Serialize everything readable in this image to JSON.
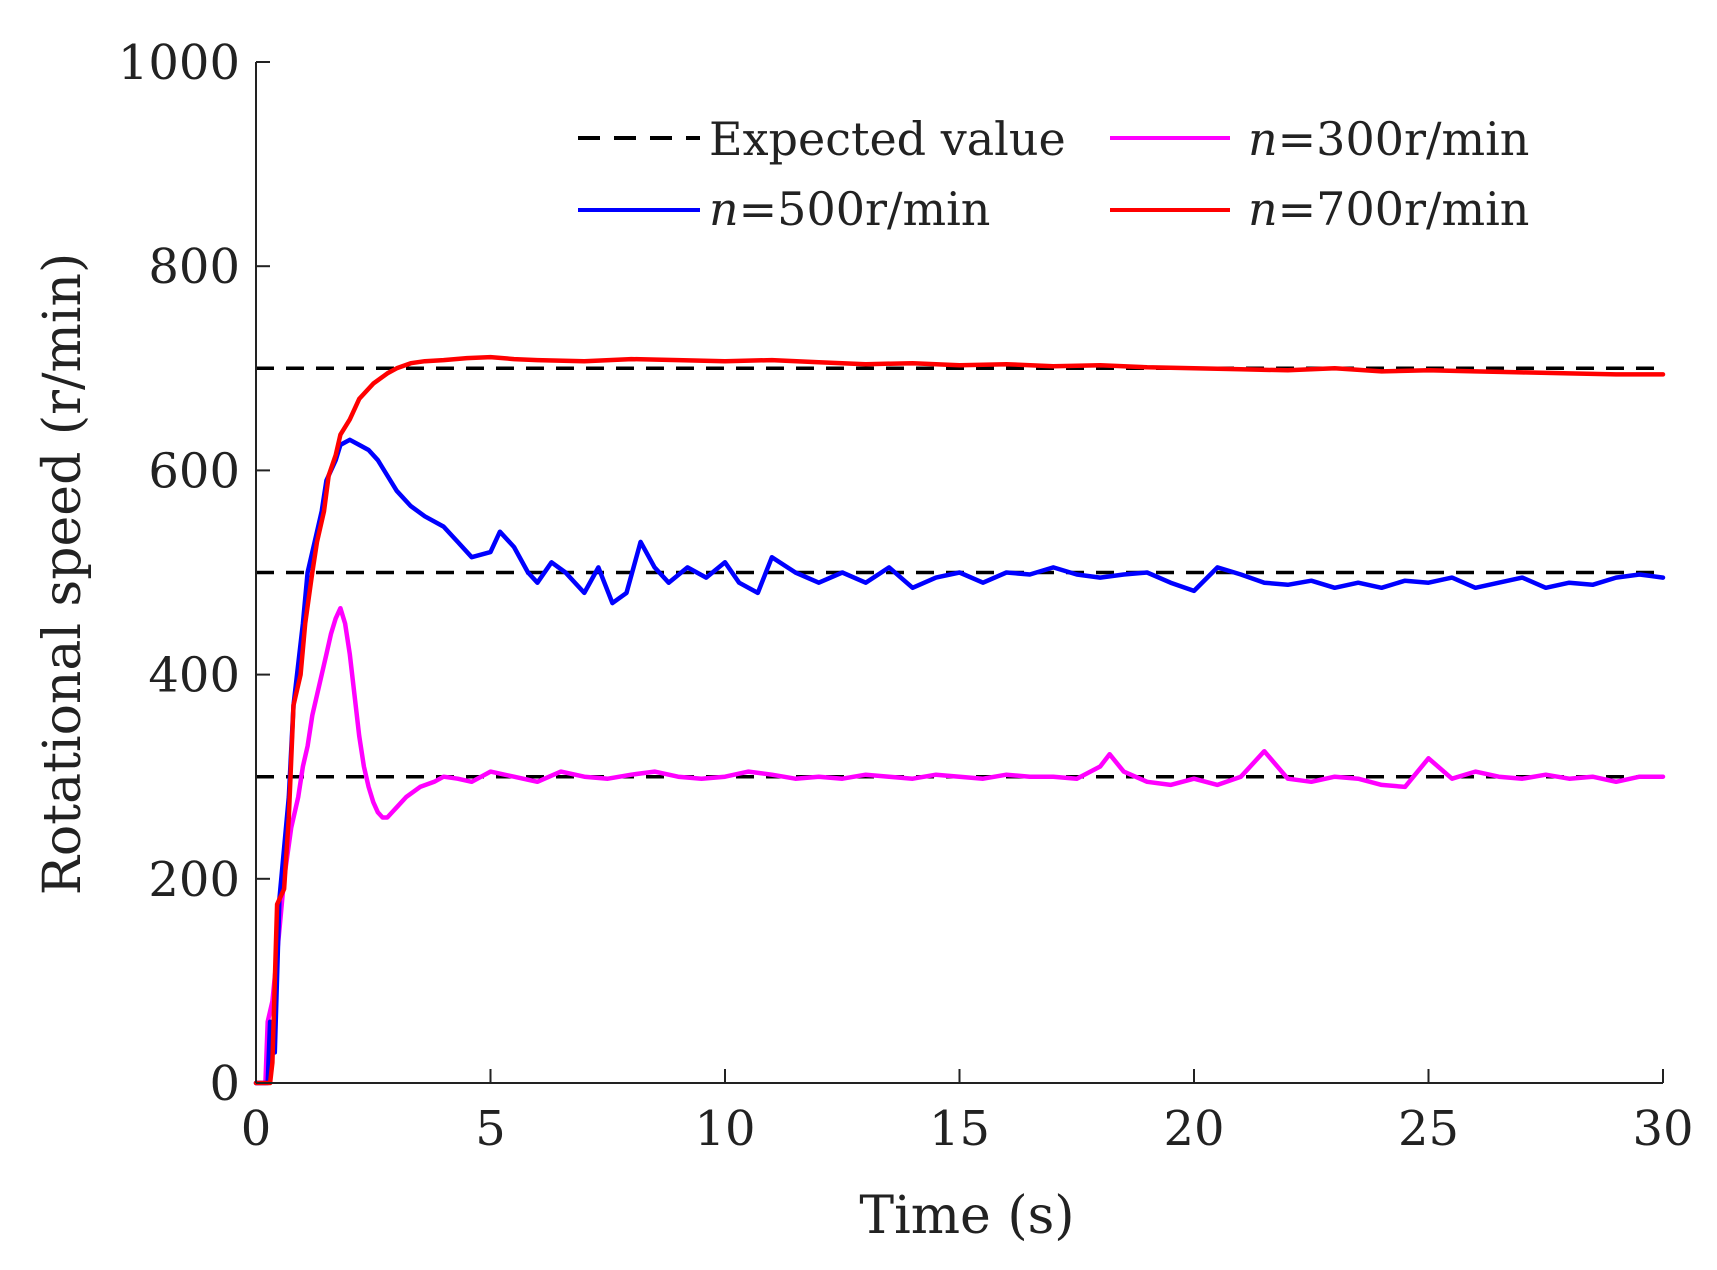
{
  "chart_data": {
    "type": "line",
    "xlabel": "Time (s)",
    "ylabel": "Rotational speed (r/min)",
    "xlim": [
      0,
      30
    ],
    "ylim": [
      0,
      1000
    ],
    "xticks": [
      0,
      5,
      10,
      15,
      20,
      25,
      30
    ],
    "yticks": [
      0,
      200,
      400,
      600,
      800,
      1000
    ],
    "grid": false,
    "legend_position": "top-right",
    "reference_lines": {
      "name": "Expected value",
      "color": "#000000",
      "style": "dashed",
      "x_start": 0,
      "x_end": 30,
      "values": [
        300,
        500,
        700
      ]
    },
    "series": [
      {
        "name": "n=300r/min",
        "name_italic": "n",
        "name_rest": "=300r/min",
        "color": "#ff00ff",
        "x": [
          0,
          0.2,
          0.25,
          0.35,
          0.5,
          0.6,
          0.75,
          0.9,
          1.0,
          1.1,
          1.2,
          1.3,
          1.4,
          1.5,
          1.6,
          1.7,
          1.8,
          1.9,
          2.0,
          2.1,
          2.2,
          2.3,
          2.4,
          2.5,
          2.6,
          2.7,
          2.8,
          2.9,
          3.0,
          3.2,
          3.5,
          3.8,
          4.0,
          4.3,
          4.6,
          5.0,
          5.5,
          6.0,
          6.5,
          7.0,
          7.5,
          8.0,
          8.5,
          9.0,
          9.5,
          10.0,
          10.5,
          11.0,
          11.5,
          12.0,
          12.5,
          13.0,
          13.5,
          14.0,
          14.5,
          15.0,
          15.5,
          16.0,
          16.5,
          17.0,
          17.5,
          18.0,
          18.2,
          18.5,
          19.0,
          19.5,
          20.0,
          20.5,
          21.0,
          21.5,
          22.0,
          22.5,
          23.0,
          23.5,
          24.0,
          24.5,
          25.0,
          25.5,
          26.0,
          26.5,
          27.0,
          27.5,
          28.0,
          28.5,
          29.0,
          29.5,
          30.0
        ],
        "y": [
          0,
          0,
          60,
          80,
          150,
          200,
          250,
          280,
          310,
          330,
          360,
          380,
          400,
          420,
          440,
          455,
          465,
          450,
          420,
          380,
          340,
          310,
          290,
          275,
          265,
          260,
          260,
          265,
          270,
          280,
          290,
          295,
          300,
          298,
          295,
          305,
          300,
          295,
          305,
          300,
          298,
          302,
          305,
          300,
          298,
          300,
          305,
          302,
          298,
          300,
          298,
          302,
          300,
          298,
          302,
          300,
          298,
          302,
          300,
          300,
          298,
          310,
          322,
          305,
          295,
          292,
          298,
          292,
          300,
          325,
          298,
          295,
          300,
          298,
          292,
          290,
          318,
          298,
          305,
          300,
          298,
          302,
          298,
          300,
          295,
          300,
          300
        ]
      },
      {
        "name": "n=500r/min",
        "name_italic": "n",
        "name_rest": "=500r/min",
        "color": "#0000ff",
        "x": [
          0,
          0.25,
          0.3,
          0.4,
          0.5,
          0.7,
          0.8,
          1.0,
          1.1,
          1.2,
          1.3,
          1.4,
          1.5,
          1.7,
          1.8,
          2.0,
          2.2,
          2.4,
          2.6,
          2.8,
          3.0,
          3.3,
          3.6,
          4.0,
          4.3,
          4.6,
          5.0,
          5.2,
          5.5,
          5.8,
          6.0,
          6.3,
          6.6,
          7.0,
          7.3,
          7.6,
          7.9,
          8.2,
          8.5,
          8.8,
          9.2,
          9.6,
          10.0,
          10.3,
          10.7,
          11.0,
          11.5,
          12.0,
          12.5,
          13.0,
          13.5,
          14.0,
          14.5,
          15.0,
          15.5,
          16.0,
          16.5,
          17.0,
          17.5,
          18.0,
          18.5,
          19.0,
          19.5,
          20.0,
          20.5,
          21.0,
          21.5,
          22.0,
          22.5,
          23.0,
          23.5,
          24.0,
          24.5,
          25.0,
          25.5,
          26.0,
          26.5,
          27.0,
          27.5,
          28.0,
          28.5,
          29.0,
          29.5,
          30.0
        ],
        "y": [
          0,
          0,
          60,
          30,
          180,
          280,
          370,
          450,
          500,
          520,
          540,
          560,
          590,
          610,
          625,
          630,
          625,
          620,
          610,
          595,
          580,
          565,
          555,
          545,
          530,
          515,
          520,
          540,
          525,
          500,
          490,
          510,
          500,
          480,
          505,
          470,
          480,
          530,
          505,
          490,
          505,
          495,
          510,
          490,
          480,
          515,
          500,
          490,
          500,
          490,
          505,
          485,
          495,
          500,
          490,
          500,
          498,
          505,
          498,
          495,
          498,
          500,
          490,
          482,
          505,
          498,
          490,
          488,
          492,
          485,
          490,
          485,
          492,
          490,
          495,
          485,
          490,
          495,
          485,
          490,
          488,
          495,
          498,
          495
        ]
      },
      {
        "name": "n=700r/min",
        "name_italic": "n",
        "name_rest": "=700r/min",
        "color": "#ff0000",
        "x": [
          0,
          0.3,
          0.35,
          0.45,
          0.6,
          0.7,
          0.8,
          0.95,
          1.05,
          1.2,
          1.3,
          1.45,
          1.55,
          1.7,
          1.8,
          2.0,
          2.2,
          2.5,
          2.8,
          3.0,
          3.3,
          3.6,
          4.0,
          4.5,
          5.0,
          5.5,
          6.0,
          7.0,
          8.0,
          9.0,
          10.0,
          11.0,
          12.0,
          13.0,
          14.0,
          15.0,
          16.0,
          17.0,
          18.0,
          19.0,
          20.0,
          21.0,
          22.0,
          23.0,
          24.0,
          25.0,
          26.0,
          27.0,
          28.0,
          29.0,
          30.0
        ],
        "y": [
          0,
          0,
          20,
          175,
          190,
          260,
          370,
          400,
          450,
          500,
          530,
          560,
          595,
          615,
          635,
          650,
          670,
          685,
          695,
          700,
          705,
          707,
          708,
          710,
          711,
          709,
          708,
          707,
          709,
          708,
          707,
          708,
          706,
          704,
          705,
          703,
          704,
          702,
          703,
          701,
          700,
          699,
          698,
          700,
          697,
          698,
          697,
          696,
          695,
          694,
          694
        ]
      }
    ]
  }
}
